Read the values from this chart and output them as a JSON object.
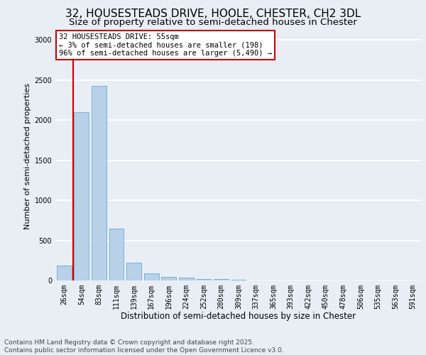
{
  "title": "32, HOUSESTEADS DRIVE, HOOLE, CHESTER, CH2 3DL",
  "subtitle": "Size of property relative to semi-detached houses in Chester",
  "xlabel": "Distribution of semi-detached houses by size in Chester",
  "ylabel": "Number of semi-detached properties",
  "categories": [
    "26sqm",
    "54sqm",
    "83sqm",
    "111sqm",
    "139sqm",
    "167sqm",
    "196sqm",
    "224sqm",
    "252sqm",
    "280sqm",
    "309sqm",
    "337sqm",
    "365sqm",
    "393sqm",
    "422sqm",
    "450sqm",
    "478sqm",
    "506sqm",
    "535sqm",
    "563sqm",
    "591sqm"
  ],
  "values": [
    190,
    2100,
    2430,
    650,
    220,
    90,
    45,
    35,
    20,
    20,
    5,
    0,
    0,
    0,
    0,
    0,
    0,
    0,
    0,
    0,
    0
  ],
  "bar_color": "#b8d0e8",
  "bar_edge_color": "#6aaad4",
  "vline_color": "#cc0000",
  "annotation_title": "32 HOUSESTEADS DRIVE: 55sqm",
  "annotation_line1": "← 3% of semi-detached houses are smaller (198)",
  "annotation_line2": "96% of semi-detached houses are larger (5,490) →",
  "annotation_box_facecolor": "#ffffff",
  "annotation_box_edgecolor": "#cc0000",
  "ylim": [
    0,
    3100
  ],
  "yticks": [
    0,
    500,
    1000,
    1500,
    2000,
    2500,
    3000
  ],
  "background_color": "#e8eef4",
  "plot_bg_color": "#e8eef4",
  "grid_color": "#ffffff",
  "footer_line1": "Contains HM Land Registry data © Crown copyright and database right 2025.",
  "footer_line2": "Contains public sector information licensed under the Open Government Licence v3.0.",
  "title_fontsize": 11,
  "subtitle_fontsize": 9.5,
  "xlabel_fontsize": 8.5,
  "ylabel_fontsize": 8,
  "tick_fontsize": 7,
  "footer_fontsize": 6.5,
  "annotation_fontsize": 7.5
}
